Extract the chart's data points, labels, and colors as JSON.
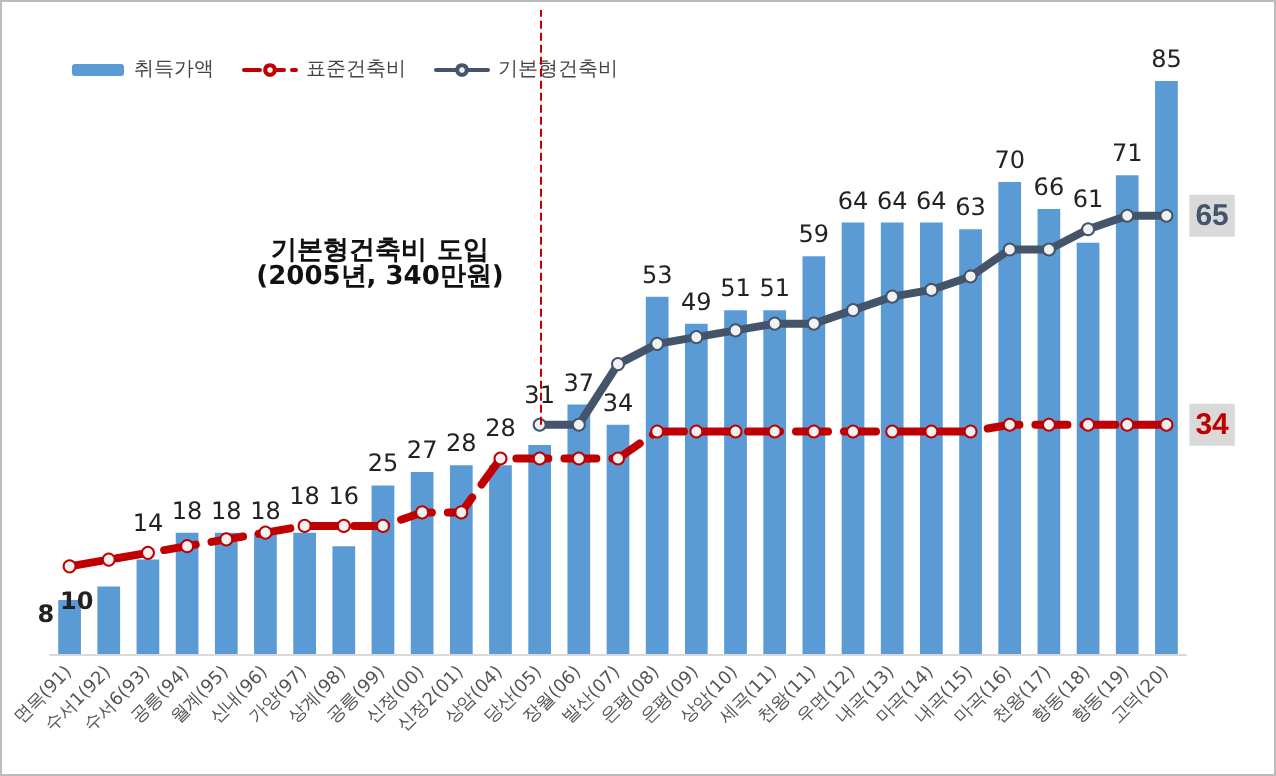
{
  "chart_data": {
    "type": "bar",
    "categories": [
      "면목(91)",
      "수서1(92)",
      "수서6(93)",
      "공릉(94)",
      "월계(95)",
      "신내(96)",
      "가양(97)",
      "상계(98)",
      "공릉(99)",
      "신정(00)",
      "신정2(01)",
      "상암(04)",
      "당산(05)",
      "장월(06)",
      "발산(07)",
      "은평(08)",
      "은평(09)",
      "상암(10)",
      "세곡(11)",
      "천왕(11)",
      "우면(12)",
      "내곡(13)",
      "마곡(14)",
      "내곡(15)",
      "마곡(16)",
      "천왕(17)",
      "항동(18)",
      "항동(19)",
      "고덕(20)"
    ],
    "series": [
      {
        "name": "취득가액",
        "color": "#5b9bd5",
        "values": [
          8,
          10,
          14,
          18,
          18,
          18,
          18,
          16,
          25,
          27,
          28,
          28,
          31,
          37,
          34,
          53,
          49,
          51,
          51,
          59,
          64,
          64,
          64,
          63,
          70,
          66,
          61,
          71,
          85
        ]
      },
      {
        "name": "표준건축비",
        "type": "line",
        "color": "#c00000",
        "line_style": "dashed",
        "values": [
          13,
          14,
          15,
          16,
          17,
          18,
          19,
          19,
          19,
          21,
          21,
          29,
          29,
          29,
          29,
          33,
          33,
          33,
          33,
          33,
          33,
          33,
          33,
          33,
          34,
          34,
          34,
          34,
          34
        ],
        "value_labels": [
          null,
          null,
          null,
          null,
          null,
          null,
          null,
          null,
          null,
          null,
          null,
          null,
          null,
          null,
          null,
          null,
          null,
          null,
          null,
          null,
          null,
          null,
          null,
          null,
          null,
          null,
          null,
          null,
          "34"
        ]
      },
      {
        "name": "기본형건축비",
        "type": "line",
        "color": "#44546a",
        "line_style": "solid",
        "values": [
          null,
          null,
          null,
          null,
          null,
          null,
          null,
          null,
          null,
          null,
          null,
          null,
          34,
          34,
          43,
          46,
          47,
          48,
          49,
          49,
          51,
          53,
          54,
          56,
          60,
          60,
          63,
          65,
          65
        ],
        "value_labels": [
          null,
          null,
          null,
          null,
          null,
          null,
          null,
          null,
          null,
          null,
          null,
          null,
          null,
          null,
          null,
          null,
          null,
          null,
          null,
          null,
          null,
          null,
          null,
          null,
          null,
          null,
          null,
          null,
          "65"
        ]
      }
    ],
    "data_labels": true,
    "marker": "circle",
    "legend": "top left",
    "grid": false,
    "tick_labels": "x",
    "ref_lines": [
      {
        "axis": "x",
        "value": "당산(05)",
        "label": "기본형건축비 도입\n(2005년, 340만원)",
        "color": "#c00000",
        "line_style": "dashed"
      }
    ]
  }
}
